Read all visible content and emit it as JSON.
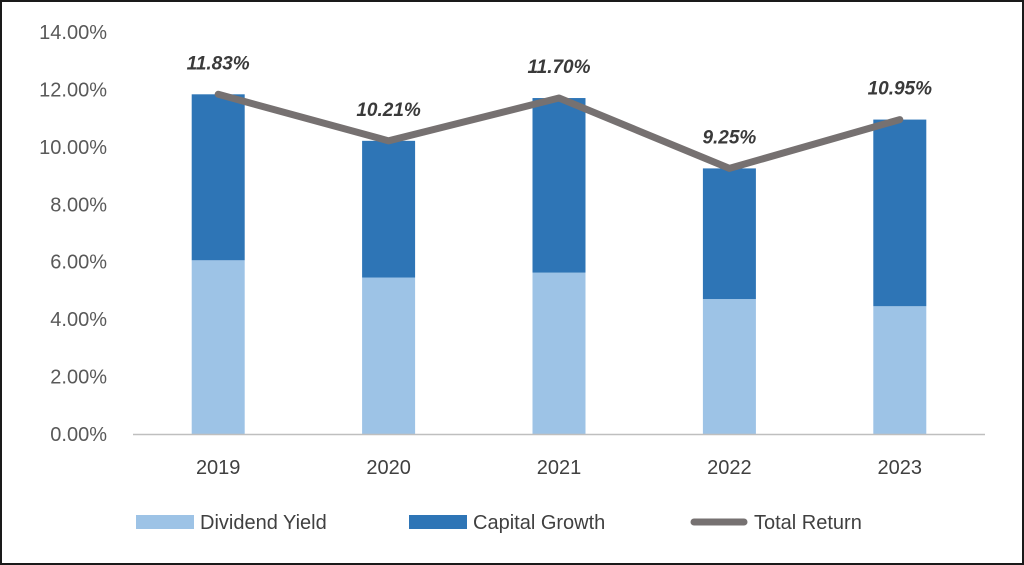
{
  "chart_data": {
    "type": "bar",
    "stacked": true,
    "categories": [
      "2019",
      "2020",
      "2021",
      "2022",
      "2023"
    ],
    "series": [
      {
        "name": "Dividend Yield",
        "kind": "bar",
        "color": "#9dc3e6",
        "values": [
          6.05,
          5.45,
          5.62,
          4.7,
          4.45
        ]
      },
      {
        "name": "Capital Growth",
        "kind": "bar",
        "color": "#2e75b6",
        "values": [
          5.78,
          4.76,
          6.08,
          4.55,
          6.5
        ]
      },
      {
        "name": "Total Return",
        "kind": "line",
        "color": "#767171",
        "values": [
          11.83,
          10.21,
          11.7,
          9.25,
          10.95
        ]
      }
    ],
    "data_labels": [
      "11.83%",
      "10.21%",
      "11.70%",
      "9.25%",
      "10.95%"
    ],
    "yticks": [
      "0.00%",
      "2.00%",
      "4.00%",
      "6.00%",
      "8.00%",
      "10.00%",
      "12.00%",
      "14.00%"
    ],
    "ylim": [
      0,
      14
    ],
    "grid": false,
    "legend_position": "bottom",
    "title": "",
    "xlabel": "",
    "ylabel": ""
  }
}
